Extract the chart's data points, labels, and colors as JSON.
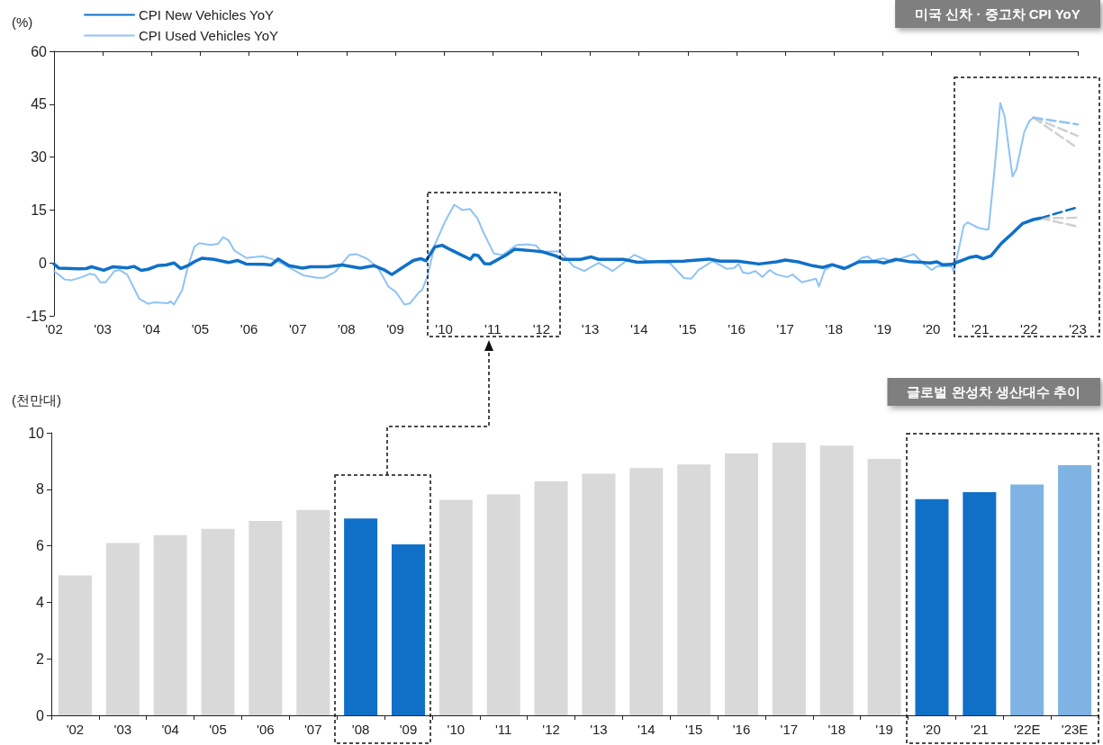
{
  "chart_data": [
    {
      "type": "line",
      "title": "미국 신차 · 중고차 CPI YoY",
      "ylabel": "(%)",
      "legend": "top left",
      "grid": false,
      "marker": "none",
      "xlim": [
        2002,
        2023
      ],
      "xticks": [
        {
          "value": 2002,
          "label": "'02"
        },
        {
          "value": 2003,
          "label": "'03"
        },
        {
          "value": 2004,
          "label": "'04"
        },
        {
          "value": 2005,
          "label": "'05"
        },
        {
          "value": 2006,
          "label": "'06"
        },
        {
          "value": 2007,
          "label": "'07"
        },
        {
          "value": 2008,
          "label": "'08"
        },
        {
          "value": 2009,
          "label": "'09"
        },
        {
          "value": 2010,
          "label": "'10"
        },
        {
          "value": 2011,
          "label": "'11"
        },
        {
          "value": 2012,
          "label": "'12"
        },
        {
          "value": 2013,
          "label": "'13"
        },
        {
          "value": 2014,
          "label": "'14"
        },
        {
          "value": 2015,
          "label": "'15"
        },
        {
          "value": 2016,
          "label": "'16"
        },
        {
          "value": 2017,
          "label": "'17"
        },
        {
          "value": 2018,
          "label": "'18"
        },
        {
          "value": 2019,
          "label": "'19"
        },
        {
          "value": 2020,
          "label": "'20"
        },
        {
          "value": 2021,
          "label": "'21"
        },
        {
          "value": 2022,
          "label": "'22"
        },
        {
          "value": 2023,
          "label": "'23"
        }
      ],
      "ylim": [
        -15,
        60
      ],
      "yticks": [
        -15,
        0,
        15,
        30,
        45,
        60
      ],
      "series": [
        {
          "name": "CPI New Vehicles YoY",
          "color": "#1070c8",
          "x": [
            2002.0,
            2002.1,
            2002.5,
            2002.66,
            2002.77,
            2003.02,
            2003.2,
            2003.5,
            2003.64,
            2003.79,
            2003.93,
            2004.12,
            2004.3,
            2004.46,
            2004.6,
            2004.77,
            2004.9,
            2005.03,
            2005.28,
            2005.58,
            2005.76,
            2005.94,
            2006.31,
            2006.45,
            2006.6,
            2006.82,
            2007.1,
            2007.26,
            2007.62,
            2007.91,
            2008.28,
            2008.57,
            2008.79,
            2008.93,
            2009.15,
            2009.37,
            2009.52,
            2009.63,
            2009.81,
            2009.96,
            2010.14,
            2010.54,
            2010.61,
            2010.7,
            2010.83,
            2010.94,
            2011.27,
            2011.45,
            2011.85,
            2012.0,
            2012.29,
            2012.44,
            2012.8,
            2013.02,
            2013.17,
            2013.68,
            2013.97,
            2014.41,
            2014.92,
            2015.44,
            2015.66,
            2016.02,
            2016.46,
            2016.82,
            2017.0,
            2017.26,
            2017.56,
            2017.77,
            2017.96,
            2018.21,
            2018.51,
            2018.87,
            2019.02,
            2019.27,
            2019.53,
            2019.97,
            2020.11,
            2020.22,
            2020.41,
            2020.77,
            2020.92,
            2021.06,
            2021.22,
            2021.43,
            2021.65,
            2021.87,
            2022.09,
            2022.23
          ],
          "values": [
            -0.3,
            -1.5,
            -1.7,
            -1.6,
            -1.1,
            -2.1,
            -1.1,
            -1.4,
            -1,
            -2.1,
            -1.8,
            -0.8,
            -0.6,
            0,
            -1.6,
            -0.6,
            0.5,
            1.3,
            1,
            0.1,
            0.7,
            -0.3,
            -0.4,
            -0.6,
            1.1,
            -0.8,
            -1.5,
            -1.1,
            -1.1,
            -0.6,
            -1.5,
            -0.8,
            -2.1,
            -3.3,
            -1.3,
            0.7,
            1.2,
            0.6,
            4.5,
            5,
            3.7,
            1,
            2.3,
            2.1,
            -0.2,
            -0.3,
            2.2,
            3.9,
            3.4,
            3.2,
            2,
            1,
            1,
            1.7,
            1,
            1,
            0.2,
            0.4,
            0.5,
            1.1,
            0.5,
            0.5,
            -0.3,
            0.3,
            0.8,
            0.3,
            -0.8,
            -1.3,
            -0.5,
            -1.6,
            0.3,
            0.4,
            0,
            1,
            0.4,
            0,
            0.3,
            -0.5,
            -0.4,
            1.5,
            1.9,
            1.2,
            2,
            5.5,
            8.3,
            11.2,
            12.3,
            12.7
          ]
        },
        {
          "name": "CPI Used Vehicles YoY",
          "color": "#8fc3f5",
          "x": [
            2002.0,
            2002.22,
            2002.36,
            2002.58,
            2002.73,
            2002.84,
            2002.95,
            2003.06,
            2003.24,
            2003.35,
            2003.5,
            2003.75,
            2003.93,
            2004.04,
            2004.34,
            2004.39,
            2004.46,
            2004.63,
            2004.74,
            2004.88,
            2004.98,
            2005.21,
            2005.36,
            2005.47,
            2005.58,
            2005.7,
            2005.94,
            2006.27,
            2006.45,
            2006.67,
            2007.11,
            2007.4,
            2007.55,
            2007.77,
            2008.06,
            2008.2,
            2008.42,
            2008.64,
            2008.86,
            2009.01,
            2009.19,
            2009.3,
            2009.48,
            2009.55,
            2009.66,
            2009.81,
            2010.03,
            2010.21,
            2010.37,
            2010.53,
            2010.69,
            2010.8,
            2011.02,
            2011.2,
            2011.49,
            2011.71,
            2011.89,
            2012.0,
            2012.37,
            2012.66,
            2012.88,
            2013.17,
            2013.46,
            2013.9,
            2014.19,
            2014.63,
            2014.92,
            2015.07,
            2015.22,
            2015.51,
            2015.8,
            2015.95,
            2016.04,
            2016.13,
            2016.24,
            2016.39,
            2016.53,
            2016.68,
            2016.82,
            2017.04,
            2017.15,
            2017.34,
            2017.63,
            2017.69,
            2017.81,
            2018.0,
            2018.29,
            2018.58,
            2018.69,
            2018.8,
            2019.02,
            2019.2,
            2019.38,
            2019.64,
            2019.82,
            2020.0,
            2020.11,
            2020.41,
            2020.46,
            2020.66,
            2020.74,
            2020.95,
            2021.1,
            2021.17,
            2021.3,
            2021.41,
            2021.5,
            2021.66,
            2021.74,
            2021.9,
            2022.01,
            2022.09
          ],
          "values": [
            -2.3,
            -4.7,
            -4.9,
            -4,
            -3.1,
            -3.4,
            -5.5,
            -5.5,
            -2.3,
            -2,
            -3.3,
            -10.2,
            -11.6,
            -11.2,
            -11.4,
            -10.9,
            -11.8,
            -7.7,
            -1.3,
            4.6,
            5.6,
            5.1,
            5.4,
            7.3,
            6.4,
            3.5,
            1.4,
            1.9,
            1.2,
            -0.1,
            -3.5,
            -4.2,
            -4.2,
            -2.5,
            2.3,
            2.5,
            1.2,
            -1.3,
            -6.7,
            -8.2,
            -11.8,
            -11.5,
            -8.4,
            -7.7,
            -3.8,
            5.1,
            12,
            16.5,
            15,
            15.3,
            12.5,
            8.9,
            2.7,
            2.2,
            5.1,
            5.3,
            4.9,
            3.2,
            3.3,
            -1,
            -2.3,
            0,
            -2.3,
            2.3,
            0.5,
            0,
            -4.3,
            -4.5,
            -2,
            0.5,
            -1.7,
            -1.5,
            -0.3,
            -2.7,
            -3,
            -2.3,
            -4,
            -2,
            -3.3,
            -4,
            -3.3,
            -5.5,
            -4.5,
            -6.7,
            -2,
            -0.5,
            -1.5,
            1.5,
            1.8,
            0.7,
            1.3,
            0.3,
            1.3,
            2.5,
            0,
            -2,
            -1,
            -1,
            -2.5,
            10.5,
            11.5,
            10,
            9.5,
            9.5,
            27.5,
            45.3,
            41.5,
            24.5,
            26.5,
            37,
            40.3,
            41.2
          ]
        },
        {
          "color": "#d0d0d0",
          "line_style": "dashed",
          "x": [
            2022.09,
            2023.0
          ],
          "values": [
            41.2,
            36
          ]
        },
        {
          "color": "#d0d0d0",
          "line_style": "dashed",
          "x": [
            2022.09,
            2023.0
          ],
          "values": [
            41.2,
            32.5
          ]
        },
        {
          "color": "#8fc3f5",
          "line_style": "dashed",
          "x": [
            2022.09,
            2023.0
          ],
          "values": [
            41.2,
            39.3
          ]
        },
        {
          "color": "#d0d0d0",
          "line_style": "dashed",
          "x": [
            2022.23,
            2023.0
          ],
          "values": [
            12.7,
            12.8
          ]
        },
        {
          "color": "#d0d0d0",
          "line_style": "dashed",
          "x": [
            2022.23,
            2023.0
          ],
          "values": [
            12.7,
            10.3
          ]
        },
        {
          "color": "#1070c8",
          "line_style": "dashed",
          "x": [
            2022.23,
            2023.0
          ],
          "values": [
            12.7,
            15.8
          ]
        }
      ]
    },
    {
      "type": "bar",
      "title": "글로벌 완성차 생산대수 추이",
      "ylabel": "(천만대)",
      "grid": false,
      "categories": [
        "'02",
        "'03",
        "'04",
        "'05",
        "'06",
        "'07",
        "'08",
        "'09",
        "'10",
        "'11",
        "'12",
        "'13",
        "'14",
        "'15",
        "'16",
        "'17",
        "'18",
        "'19",
        "'20",
        "'21",
        "'22E",
        "'23E"
      ],
      "values": [
        4.95,
        6.1,
        6.38,
        6.6,
        6.88,
        7.27,
        6.97,
        6.05,
        7.63,
        7.82,
        8.28,
        8.55,
        8.75,
        8.88,
        9.27,
        9.65,
        9.55,
        9.08,
        7.65,
        7.9,
        8.17,
        8.85
      ],
      "colors": [
        "#d9d9d9",
        "#d9d9d9",
        "#d9d9d9",
        "#d9d9d9",
        "#d9d9d9",
        "#d9d9d9",
        "#1070c8",
        "#1070c8",
        "#d9d9d9",
        "#d9d9d9",
        "#d9d9d9",
        "#d9d9d9",
        "#d9d9d9",
        "#d9d9d9",
        "#d9d9d9",
        "#d9d9d9",
        "#d9d9d9",
        "#d9d9d9",
        "#1070c8",
        "#1070c8",
        "#7fb3e3",
        "#7fb3e3"
      ],
      "ylim": [
        0,
        10
      ],
      "yticks": [
        0,
        2,
        4,
        6,
        8,
        10
      ]
    }
  ]
}
